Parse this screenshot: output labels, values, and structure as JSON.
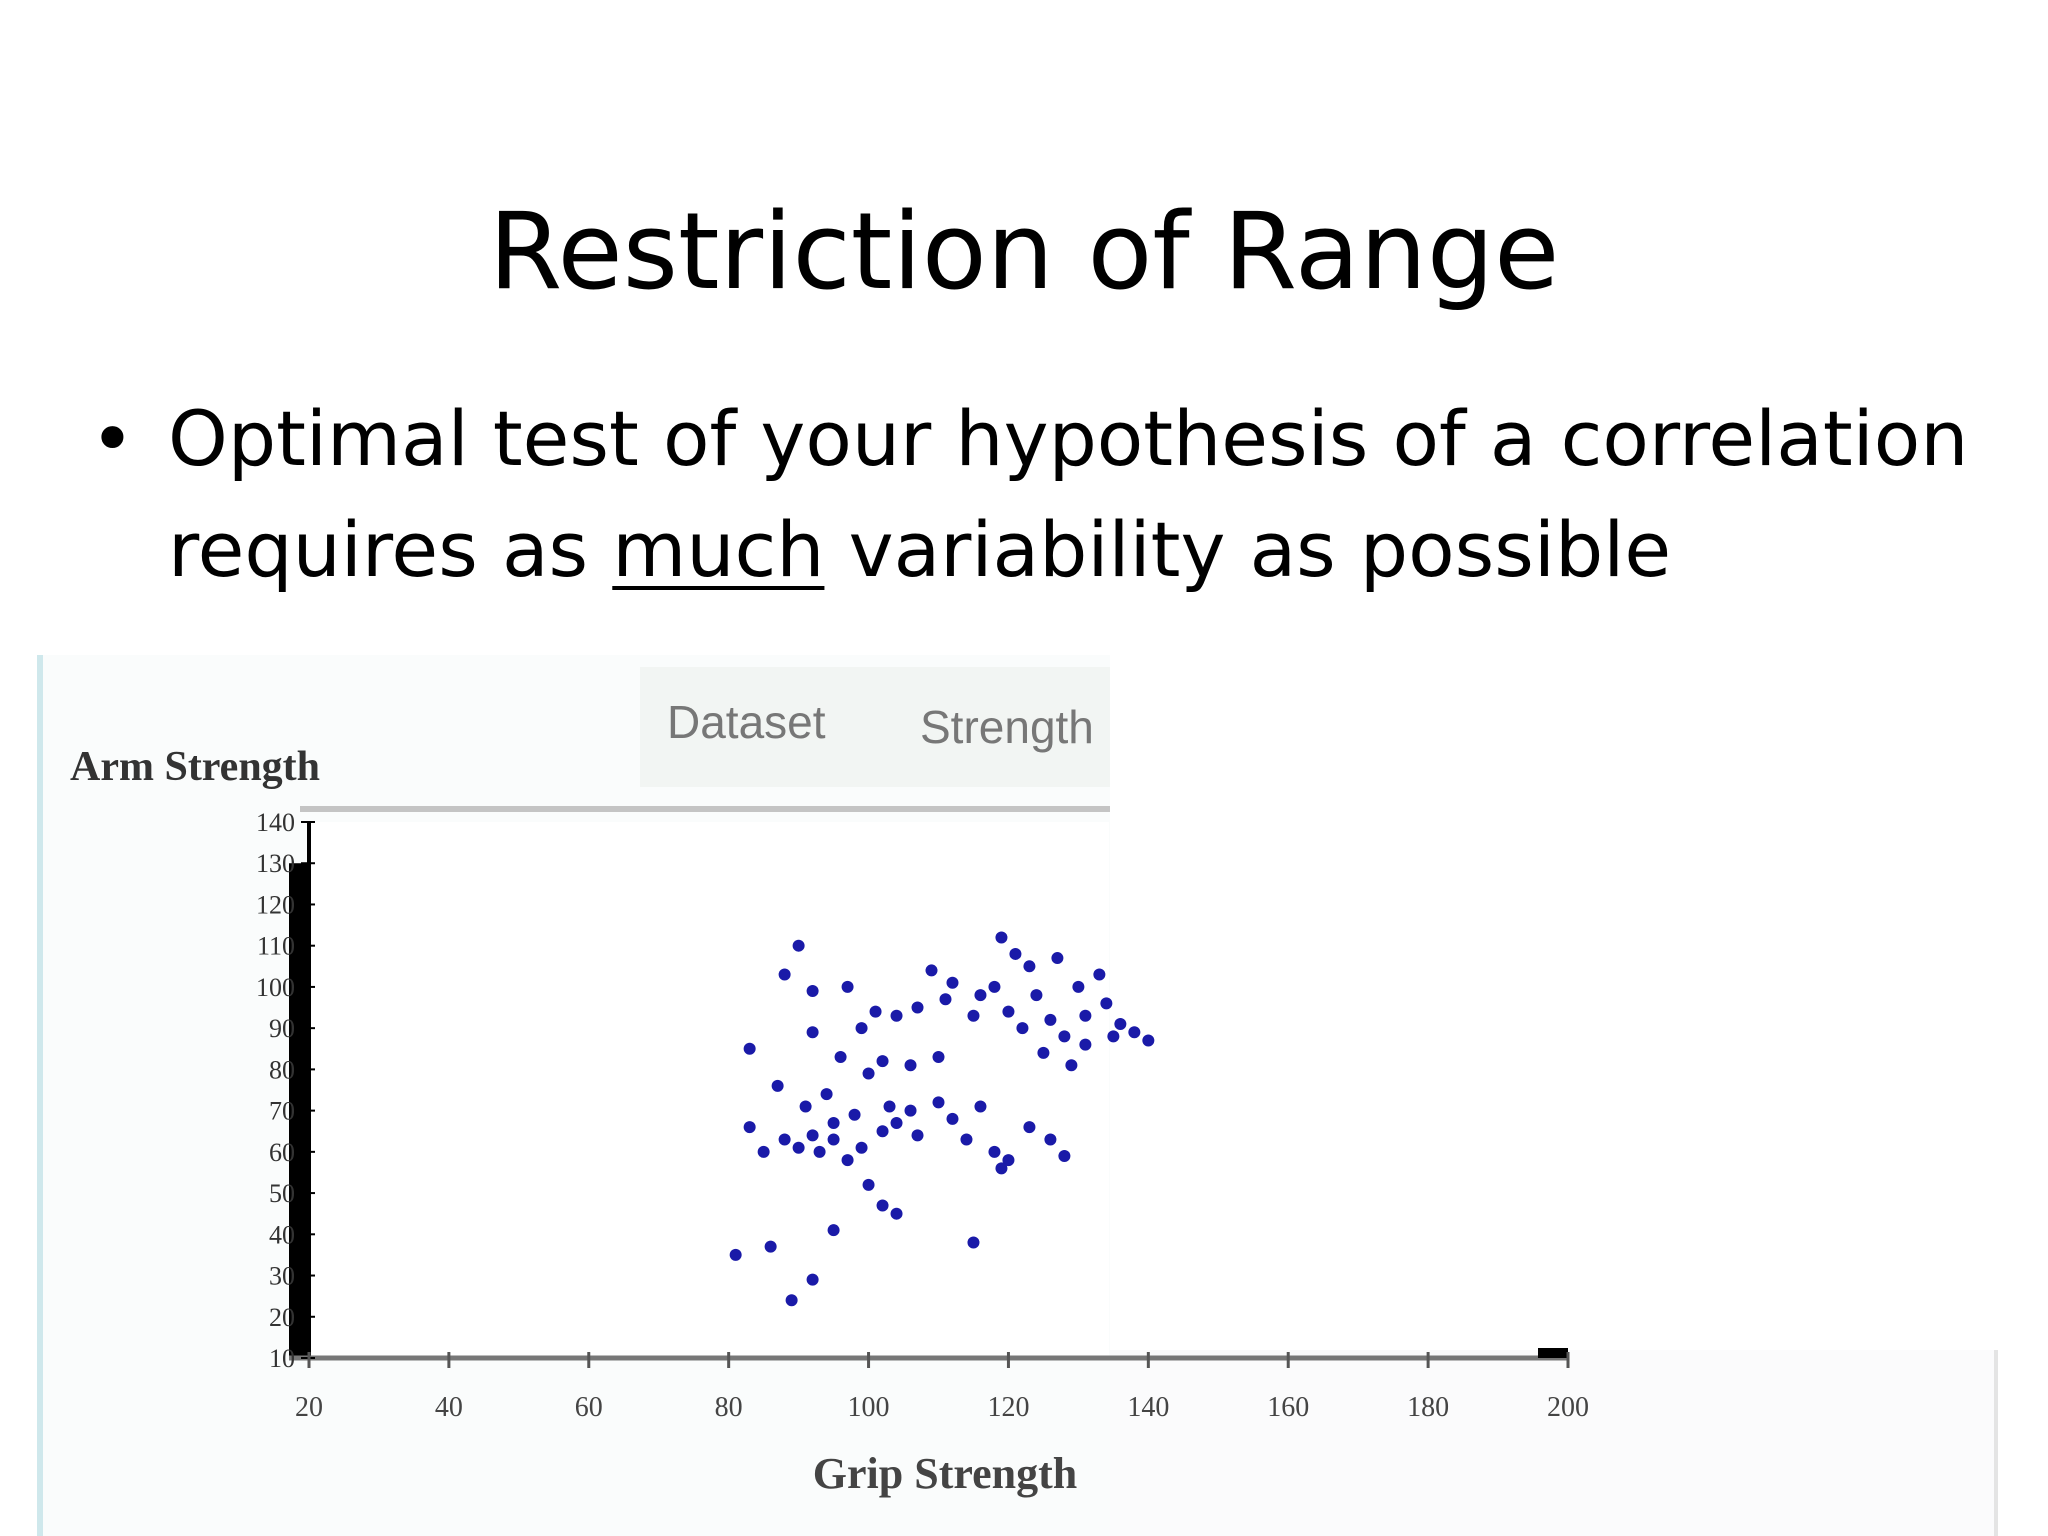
{
  "slide": {
    "title": "Restriction of Range",
    "bullet": {
      "marker": "•",
      "text_before": "Optimal test of your hypothesis of a correlation requires as ",
      "emphasis": "much",
      "text_after": " variability as possible"
    }
  },
  "dataset": {
    "label": "Dataset",
    "value": "Strength"
  },
  "colors": {
    "points": "#1a1aa8",
    "axis": "#000000"
  },
  "chart_data": {
    "type": "scatter",
    "ylabel": "Arm Strength",
    "xlabel": "Grip Strength",
    "xlim": [
      20,
      200
    ],
    "ylim": [
      10,
      140
    ],
    "x_ticks": [
      20,
      40,
      60,
      80,
      100,
      120,
      140,
      160,
      180,
      200
    ],
    "y_ticks": [
      10,
      20,
      30,
      40,
      50,
      60,
      70,
      80,
      90,
      100,
      110,
      120,
      130,
      140
    ],
    "x_tick_labels": [
      "20",
      "40",
      "60",
      "80",
      "100",
      "120",
      "140",
      "160",
      "180",
      "200"
    ],
    "y_tick_labels": [
      "10",
      "20",
      "30",
      "40",
      "50",
      "60",
      "70",
      "80",
      "90",
      "100",
      "110",
      "120",
      "130",
      "140"
    ],
    "grid": false,
    "points": [
      {
        "x": 90,
        "y": 110
      },
      {
        "x": 88,
        "y": 103
      },
      {
        "x": 97,
        "y": 100
      },
      {
        "x": 92,
        "y": 99
      },
      {
        "x": 83,
        "y": 85
      },
      {
        "x": 87,
        "y": 76
      },
      {
        "x": 94,
        "y": 74
      },
      {
        "x": 96,
        "y": 83
      },
      {
        "x": 99,
        "y": 90
      },
      {
        "x": 92,
        "y": 89
      },
      {
        "x": 101,
        "y": 94
      },
      {
        "x": 104,
        "y": 93
      },
      {
        "x": 107,
        "y": 95
      },
      {
        "x": 102,
        "y": 82
      },
      {
        "x": 100,
        "y": 79
      },
      {
        "x": 106,
        "y": 81
      },
      {
        "x": 110,
        "y": 83
      },
      {
        "x": 109,
        "y": 104
      },
      {
        "x": 112,
        "y": 101
      },
      {
        "x": 111,
        "y": 97
      },
      {
        "x": 116,
        "y": 98
      },
      {
        "x": 119,
        "y": 112
      },
      {
        "x": 121,
        "y": 108
      },
      {
        "x": 123,
        "y": 105
      },
      {
        "x": 118,
        "y": 100
      },
      {
        "x": 124,
        "y": 98
      },
      {
        "x": 120,
        "y": 94
      },
      {
        "x": 115,
        "y": 93
      },
      {
        "x": 122,
        "y": 90
      },
      {
        "x": 126,
        "y": 92
      },
      {
        "x": 125,
        "y": 84
      },
      {
        "x": 128,
        "y": 88
      },
      {
        "x": 131,
        "y": 93
      },
      {
        "x": 130,
        "y": 100
      },
      {
        "x": 133,
        "y": 103
      },
      {
        "x": 127,
        "y": 107
      },
      {
        "x": 134,
        "y": 96
      },
      {
        "x": 136,
        "y": 91
      },
      {
        "x": 131,
        "y": 86
      },
      {
        "x": 135,
        "y": 88
      },
      {
        "x": 138,
        "y": 89
      },
      {
        "x": 140,
        "y": 87
      },
      {
        "x": 129,
        "y": 81
      },
      {
        "x": 83,
        "y": 66
      },
      {
        "x": 85,
        "y": 60
      },
      {
        "x": 88,
        "y": 63
      },
      {
        "x": 90,
        "y": 61
      },
      {
        "x": 92,
        "y": 64
      },
      {
        "x": 93,
        "y": 60
      },
      {
        "x": 95,
        "y": 63
      },
      {
        "x": 91,
        "y": 71
      },
      {
        "x": 95,
        "y": 67
      },
      {
        "x": 98,
        "y": 69
      },
      {
        "x": 99,
        "y": 61
      },
      {
        "x": 97,
        "y": 58
      },
      {
        "x": 102,
        "y": 65
      },
      {
        "x": 104,
        "y": 67
      },
      {
        "x": 106,
        "y": 70
      },
      {
        "x": 103,
        "y": 71
      },
      {
        "x": 107,
        "y": 64
      },
      {
        "x": 110,
        "y": 72
      },
      {
        "x": 112,
        "y": 68
      },
      {
        "x": 114,
        "y": 63
      },
      {
        "x": 116,
        "y": 71
      },
      {
        "x": 118,
        "y": 60
      },
      {
        "x": 119,
        "y": 56
      },
      {
        "x": 120,
        "y": 58
      },
      {
        "x": 123,
        "y": 66
      },
      {
        "x": 126,
        "y": 63
      },
      {
        "x": 128,
        "y": 59
      },
      {
        "x": 100,
        "y": 52
      },
      {
        "x": 102,
        "y": 47
      },
      {
        "x": 104,
        "y": 45
      },
      {
        "x": 95,
        "y": 41
      },
      {
        "x": 86,
        "y": 37
      },
      {
        "x": 92,
        "y": 29
      },
      {
        "x": 89,
        "y": 24
      },
      {
        "x": 115,
        "y": 38
      },
      {
        "x": 81,
        "y": 35
      }
    ]
  }
}
